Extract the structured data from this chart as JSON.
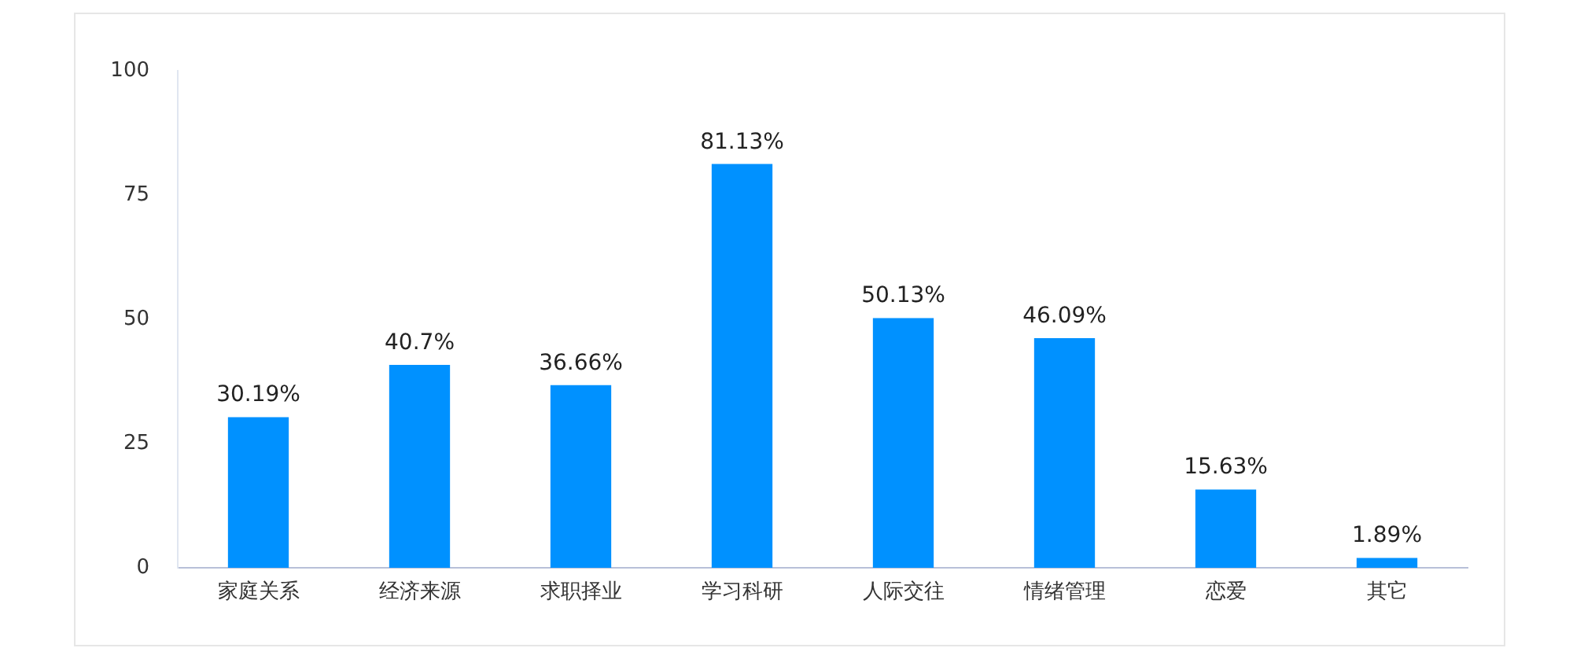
{
  "chart_data": {
    "type": "bar",
    "categories": [
      "家庭关系",
      "经济来源",
      "求职择业",
      "学习科研",
      "人际交往",
      "情绪管理",
      "恋爱",
      "其它"
    ],
    "values": [
      30.19,
      40.7,
      36.66,
      81.13,
      50.13,
      46.09,
      15.63,
      1.89
    ],
    "value_labels": [
      "30.19%",
      "40.7%",
      "36.66%",
      "81.13%",
      "50.13%",
      "46.09%",
      "15.63%",
      "1.89%"
    ],
    "color": "#0091ff",
    "ylim": [
      0,
      100
    ],
    "yticks": [
      0,
      25,
      50,
      75,
      100
    ],
    "grid": false,
    "legend": false
  }
}
